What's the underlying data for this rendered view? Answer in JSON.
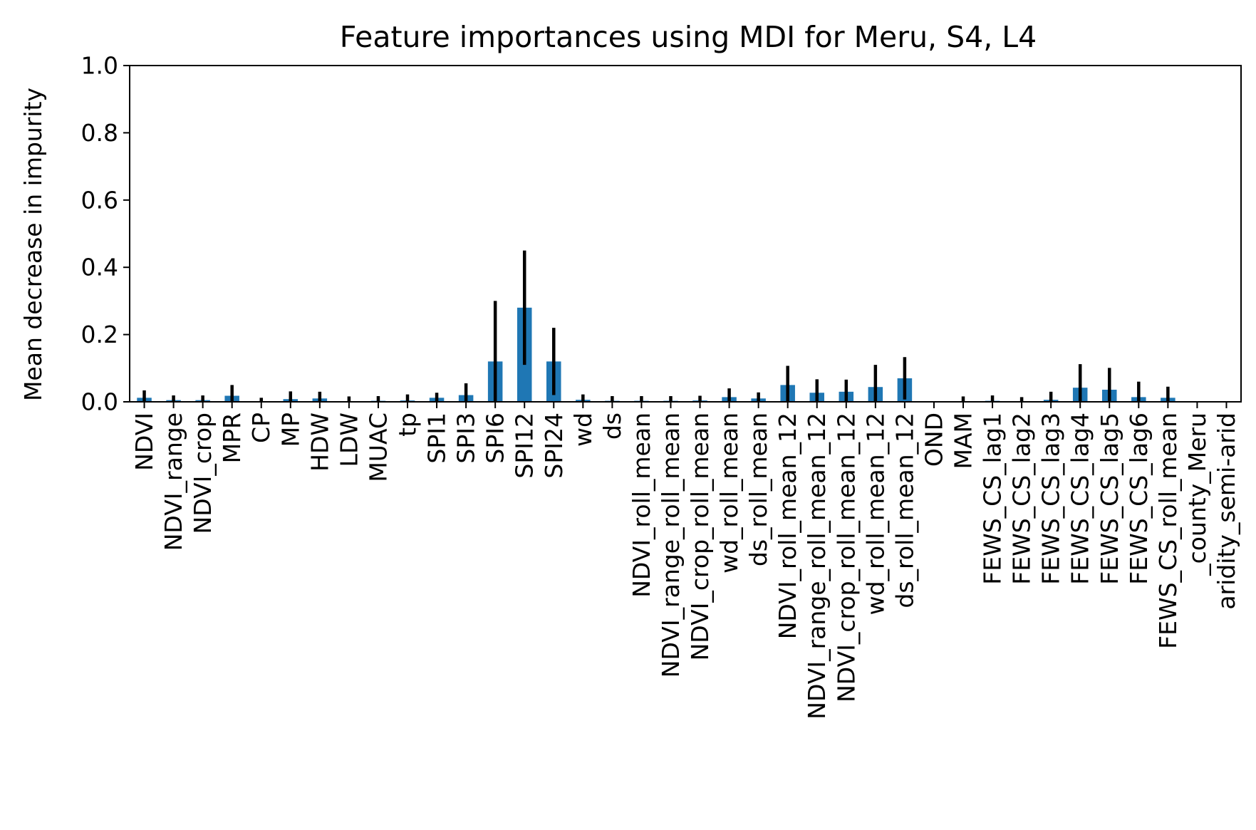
{
  "chart_data": {
    "type": "bar",
    "title": "Feature importances using MDI for Meru, S4, L4",
    "xlabel": "",
    "ylabel": "Mean decrease in impurity",
    "ylim": [
      0,
      1.0
    ],
    "yticks": [
      "0.0",
      "0.2",
      "0.4",
      "0.6",
      "0.8",
      "1.0"
    ],
    "grid": false,
    "legend": "none",
    "bar_color": "#1f77b4",
    "error_color": "#000000",
    "categories": [
      "NDVI",
      "NDVI_range",
      "NDVI_crop",
      "MPR",
      "CP",
      "MP",
      "HDW",
      "LDW",
      "MUAC",
      "tp",
      "SPI1",
      "SPI3",
      "SPI6",
      "SPI12",
      "SPI24",
      "wd",
      "ds",
      "NDVI_roll_mean",
      "NDVI_range_roll_mean",
      "NDVI_crop_roll_mean",
      "wd_roll_mean",
      "ds_roll_mean",
      "NDVI_roll_mean_12",
      "NDVI_range_roll_mean_12",
      "NDVI_crop_roll_mean_12",
      "wd_roll_mean_12",
      "ds_roll_mean_12",
      "OND",
      "MAM",
      "FEWS_CS_lag1",
      "FEWS_CS_lag2",
      "FEWS_CS_lag3",
      "FEWS_CS_lag4",
      "FEWS_CS_lag5",
      "FEWS_CS_lag6",
      "FEWS_CS_roll_mean",
      "_county_Meru",
      "aridity_semi-arid"
    ],
    "values": [
      0.012,
      0.005,
      0.005,
      0.018,
      0.002,
      0.008,
      0.01,
      0.002,
      0.003,
      0.004,
      0.012,
      0.02,
      0.12,
      0.28,
      0.12,
      0.006,
      0.003,
      0.003,
      0.003,
      0.004,
      0.014,
      0.01,
      0.05,
      0.027,
      0.03,
      0.044,
      0.07,
      0.0,
      0.002,
      0.003,
      0.002,
      0.006,
      0.042,
      0.036,
      0.014,
      0.012,
      0.0,
      0.0
    ],
    "errors": [
      0.022,
      0.014,
      0.014,
      0.032,
      0.01,
      0.023,
      0.02,
      0.014,
      0.014,
      0.018,
      0.015,
      0.035,
      0.18,
      0.17,
      0.1,
      0.016,
      0.014,
      0.014,
      0.014,
      0.014,
      0.026,
      0.018,
      0.057,
      0.04,
      0.036,
      0.066,
      0.063,
      0.0,
      0.014,
      0.016,
      0.012,
      0.024,
      0.07,
      0.065,
      0.046,
      0.033,
      0.0,
      0.0
    ]
  }
}
